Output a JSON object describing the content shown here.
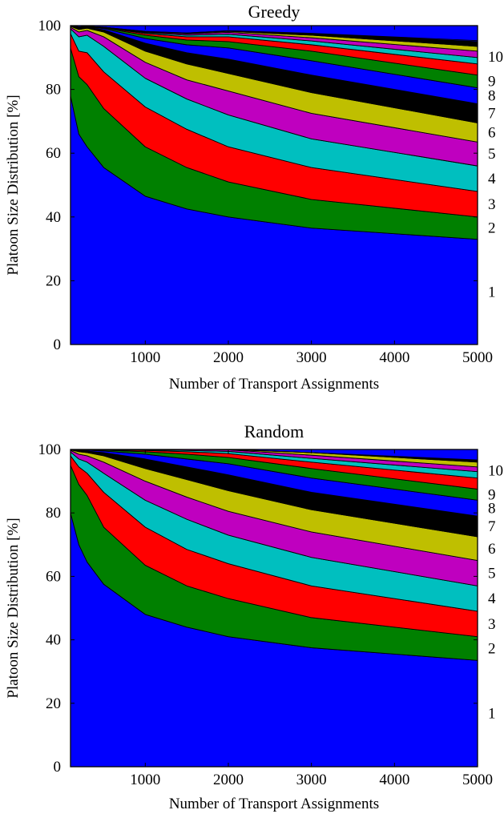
{
  "chart_data": [
    {
      "type": "area",
      "stacked": true,
      "title": "Greedy",
      "xlabel": "Number of Transport Assignments",
      "ylabel": "Platoon Size Distribution [%]",
      "xlim": [
        100,
        5000
      ],
      "ylim": [
        0,
        100
      ],
      "xticks": [
        "1000",
        "2000",
        "3000",
        "4000",
        "5000"
      ],
      "yticks": [
        "0",
        "20",
        "40",
        "60",
        "80",
        "100"
      ],
      "grid": false,
      "x": [
        100,
        200,
        300,
        500,
        1000,
        1500,
        2000,
        3000,
        5000
      ],
      "series": [
        {
          "name": "1",
          "color": "#0000ff",
          "values": [
            78,
            66,
            62,
            55.5,
            46.5,
            42.5,
            40,
            36.5,
            33
          ]
        },
        {
          "name": "2",
          "color": "#008000",
          "values": [
            15,
            18,
            19.5,
            18.5,
            15.5,
            13,
            11,
            9,
            7
          ]
        },
        {
          "name": "3",
          "color": "#ff0000",
          "values": [
            4.5,
            8,
            10,
            11.5,
            12.5,
            12,
            11,
            10,
            8
          ]
        },
        {
          "name": "4",
          "color": "#00bfbf",
          "values": [
            1.5,
            4.5,
            5.5,
            8,
            9,
            9.5,
            10,
            9,
            8
          ]
        },
        {
          "name": "5",
          "color": "#bf00bf",
          "values": [
            0.5,
            1.5,
            1.5,
            3,
            5,
            6,
            7.5,
            8,
            7.5
          ]
        },
        {
          "name": "6",
          "color": "#bfbf00",
          "values": [
            0.3,
            0.8,
            0.7,
            1.5,
            3.5,
            5,
            5.5,
            6.5,
            6
          ]
        },
        {
          "name": "7",
          "color": "#000000",
          "values": [
            0.2,
            0.4,
            0.3,
            0.7,
            2.5,
            3.5,
            4.5,
            5.5,
            6
          ]
        },
        {
          "name": "8",
          "color": "#0000ff",
          "values": [
            0,
            0.2,
            0.1,
            0.4,
            1.5,
            2.5,
            3.5,
            4.5,
            5
          ]
        },
        {
          "name": "9",
          "color": "#008000",
          "values": [
            0,
            0.1,
            0.1,
            0.2,
            1,
            1.5,
            2,
            3,
            4
          ]
        },
        {
          "name": "10",
          "color": "#ff0000",
          "values": [
            0,
            0.1,
            0.1,
            0.1,
            0.5,
            1,
            1.5,
            2,
            3.5
          ]
        },
        {
          "name": "",
          "color": "#00bfbf",
          "values": [
            0,
            0,
            0,
            0.05,
            0.3,
            0.5,
            0.8,
            1.2,
            2
          ]
        },
        {
          "name": "",
          "color": "#bf00bf",
          "values": [
            0,
            0,
            0,
            0.05,
            0.2,
            0.4,
            0.6,
            1,
            2
          ]
        },
        {
          "name": "",
          "color": "#bfbf00",
          "values": [
            0,
            0,
            0,
            0,
            0.1,
            0.2,
            0.3,
            0.8,
            1.5
          ]
        },
        {
          "name": "",
          "color": "#000000",
          "values": [
            0,
            0,
            0,
            0,
            0.1,
            0.1,
            0.2,
            0.5,
            1.5
          ]
        },
        {
          "name": "",
          "color": "#0000ff",
          "values": [
            0,
            0,
            0,
            0,
            0,
            0,
            0,
            0.1,
            0.3
          ]
        }
      ]
    },
    {
      "type": "area",
      "stacked": true,
      "title": "Random",
      "xlabel": "Number of Transport Assignments",
      "ylabel": "Platoon Size Distribution [%]",
      "xlim": [
        100,
        5000
      ],
      "ylim": [
        0,
        100
      ],
      "xticks": [
        "1000",
        "2000",
        "3000",
        "4000",
        "5000"
      ],
      "yticks": [
        "0",
        "20",
        "40",
        "60",
        "80",
        "100"
      ],
      "grid": false,
      "x": [
        100,
        200,
        300,
        500,
        1000,
        1500,
        2000,
        3000,
        5000
      ],
      "series": [
        {
          "name": "1",
          "color": "#0000ff",
          "values": [
            80,
            70,
            64.5,
            57.5,
            48,
            44,
            41,
            37.5,
            33.5
          ]
        },
        {
          "name": "2",
          "color": "#008000",
          "values": [
            15,
            19,
            21,
            18,
            15.5,
            13,
            12,
            9.5,
            7.5
          ]
        },
        {
          "name": "3",
          "color": "#ff0000",
          "values": [
            3,
            5.5,
            7,
            11,
            12,
            11.5,
            11,
            10,
            8
          ]
        },
        {
          "name": "4",
          "color": "#00bfbf",
          "values": [
            1.2,
            2.5,
            3.5,
            6,
            8.5,
            9.5,
            9,
            9,
            8
          ]
        },
        {
          "name": "5",
          "color": "#bf00bf",
          "values": [
            0.5,
            1.5,
            2,
            3.5,
            6,
            7,
            7.5,
            8,
            8
          ]
        },
        {
          "name": "6",
          "color": "#bfbf00",
          "values": [
            0.2,
            0.8,
            1,
            2,
            4,
            5.5,
            6.5,
            7,
            7.5
          ]
        },
        {
          "name": "7",
          "color": "#000000",
          "values": [
            0.1,
            0.4,
            0.5,
            1,
            3,
            4,
            5,
            5.5,
            6.5
          ]
        },
        {
          "name": "8",
          "color": "#0000ff",
          "values": [
            0,
            0.2,
            0.3,
            0.5,
            1.5,
            2.5,
            3.5,
            4.5,
            5
          ]
        },
        {
          "name": "9",
          "color": "#008000",
          "values": [
            0,
            0.1,
            0.1,
            0.3,
            0.8,
            1.5,
            2,
            3,
            3.5
          ]
        },
        {
          "name": "10",
          "color": "#ff0000",
          "values": [
            0,
            0,
            0.1,
            0.1,
            0.4,
            0.8,
            1.2,
            2,
            3.5
          ]
        },
        {
          "name": "",
          "color": "#00bfbf",
          "values": [
            0,
            0,
            0,
            0.05,
            0.2,
            0.4,
            0.7,
            1.2,
            2
          ]
        },
        {
          "name": "",
          "color": "#bf00bf",
          "values": [
            0,
            0,
            0,
            0.05,
            0.1,
            0.3,
            0.5,
            1,
            1.5
          ]
        },
        {
          "name": "",
          "color": "#bfbf00",
          "values": [
            0,
            0,
            0,
            0,
            0,
            0,
            0.1,
            0.8,
            1.5
          ]
        },
        {
          "name": "",
          "color": "#000000",
          "values": [
            0,
            0,
            0,
            0,
            0,
            0,
            0,
            0,
            0.5
          ]
        },
        {
          "name": "",
          "color": "#0000ff",
          "values": [
            0,
            0,
            0,
            0,
            0,
            0,
            0,
            0,
            0.2
          ]
        }
      ]
    }
  ]
}
